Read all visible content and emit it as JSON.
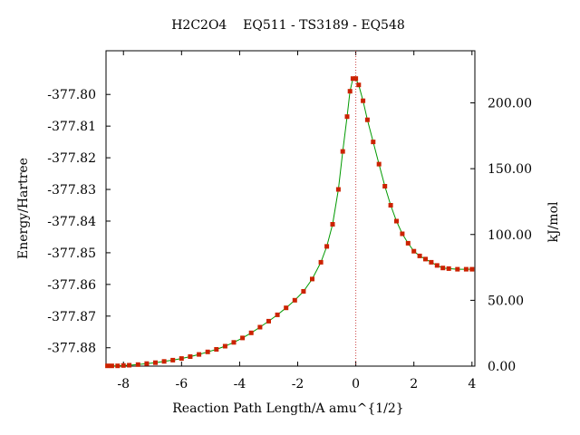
{
  "chart_data": {
    "type": "line",
    "title": "H2C2O4    EQ511 - TS3189 - EQ548",
    "xlabel": "Reaction Path Length/A amu^{1/2}",
    "ylabel_left": "Energy/Hartree",
    "ylabel_right": "kJ/mol",
    "xlim": [
      -8.6,
      4.1
    ],
    "ylim_left": [
      -377.8858,
      -377.7862
    ],
    "ylim_right": [
      0,
      239.6
    ],
    "x_ticks": [
      "-8",
      "-6",
      "-4",
      "-2",
      "0",
      "2",
      "4"
    ],
    "y_left_ticks": [
      "-377.80",
      "-377.81",
      "-377.82",
      "-377.83",
      "-377.84",
      "-377.85",
      "-377.86",
      "-377.87",
      "-377.88"
    ],
    "y_right_ticks": [
      "0.00",
      "50.00",
      "100.00",
      "150.00",
      "200.00"
    ],
    "ts_marker_x": 0,
    "colors": {
      "line": "#009900",
      "point": "#cc2200",
      "ts_line": "#cc4444",
      "frame": "#000000"
    },
    "series": [
      {
        "x": [
          -8.55,
          -8.4,
          -8.2,
          -8.0,
          -7.8,
          -7.5,
          -7.2,
          -6.9,
          -6.6,
          -6.3,
          -6.0,
          -5.7,
          -5.4,
          -5.1,
          -4.8,
          -4.5,
          -4.2,
          -3.9,
          -3.6,
          -3.3,
          -3.0,
          -2.7,
          -2.4,
          -2.1,
          -1.8,
          -1.5,
          -1.2,
          -1.0,
          -0.8,
          -0.6,
          -0.45,
          -0.3,
          -0.2,
          -0.1,
          0.0,
          0.1,
          0.25,
          0.4,
          0.6,
          0.8,
          1.0,
          1.2,
          1.4,
          1.6,
          1.8,
          2.0,
          2.2,
          2.4,
          2.6,
          2.8,
          3.0,
          3.2,
          3.5,
          3.8,
          4.0
        ],
        "y": [
          -377.8857,
          -377.8857,
          -377.8857,
          -377.8856,
          -377.8855,
          -377.8853,
          -377.885,
          -377.8847,
          -377.8843,
          -377.8839,
          -377.8834,
          -377.8828,
          -377.8821,
          -377.8813,
          -377.8805,
          -377.8795,
          -377.8783,
          -377.8769,
          -377.8753,
          -377.8735,
          -377.8716,
          -377.8696,
          -377.8674,
          -377.865,
          -377.8622,
          -377.8583,
          -377.853,
          -377.848,
          -377.841,
          -377.83,
          -377.818,
          -377.807,
          -377.799,
          -377.795,
          -377.795,
          -377.797,
          -377.802,
          -377.808,
          -377.815,
          -377.822,
          -377.829,
          -377.835,
          -377.84,
          -377.844,
          -377.847,
          -377.8495,
          -377.851,
          -377.852,
          -377.853,
          -377.854,
          -377.8548,
          -377.855,
          -377.8552,
          -377.8552,
          -377.8552
        ]
      }
    ]
  }
}
